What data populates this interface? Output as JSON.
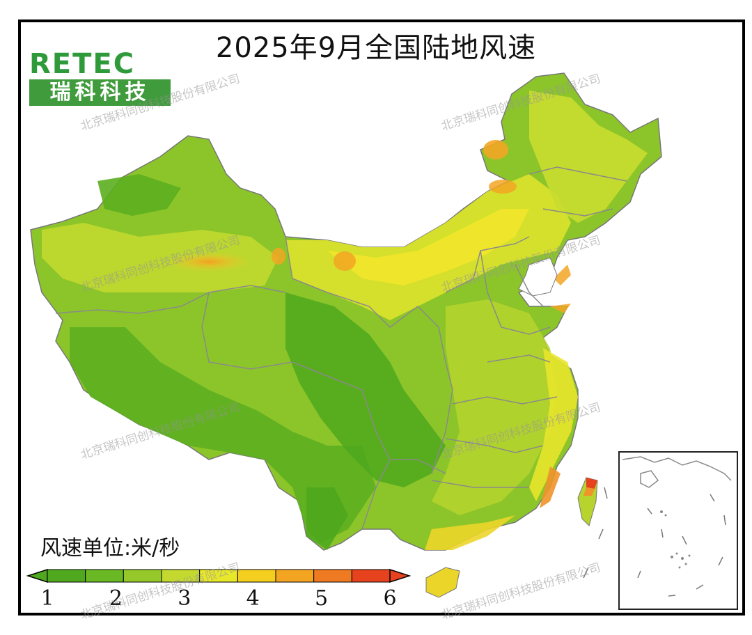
{
  "title": "2025年9月全国陆地风速",
  "logo": {
    "brand": "RETEC",
    "subtitle": "瑞科科技"
  },
  "watermark": "北京瑞科同创科技股份有限公司",
  "unit_label": "风速单位:米/秒",
  "legend": {
    "ticks": [
      "1",
      "2",
      "3",
      "4",
      "5",
      "6"
    ],
    "colors": [
      "#4fa81d",
      "#6ab823",
      "#96c82a",
      "#c4d92f",
      "#e8e82a",
      "#f5cf1f",
      "#f3a522",
      "#ee7a22",
      "#e6421d"
    ]
  },
  "colors": {
    "border": "#000000",
    "province_line": "#8a8a8a",
    "low": "#4fa81d",
    "high": "#e6421d"
  }
}
